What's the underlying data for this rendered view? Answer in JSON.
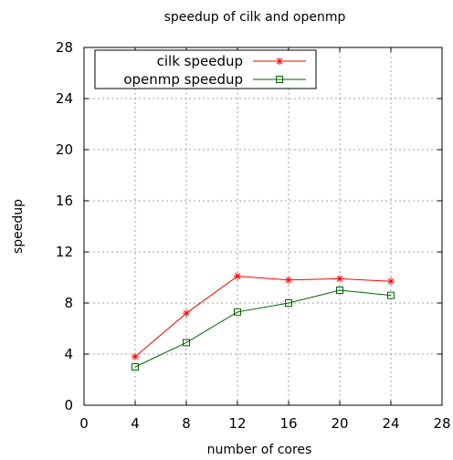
{
  "chart_data": {
    "type": "line",
    "title": "speedup of cilk and openmp",
    "xlabel": "number of cores",
    "ylabel": "speedup",
    "xlim": [
      0,
      28
    ],
    "ylim": [
      0,
      28
    ],
    "x_ticks": [
      0,
      4,
      8,
      12,
      16,
      20,
      24,
      28
    ],
    "y_ticks": [
      0,
      4,
      8,
      12,
      16,
      20,
      24,
      28
    ],
    "grid": true,
    "legend_position": "top-left",
    "series": [
      {
        "name": "cilk speedup",
        "color": "#ff0000",
        "marker": "asterisk",
        "x": [
          4,
          8,
          12,
          16,
          20,
          24
        ],
        "y": [
          3.8,
          7.2,
          10.1,
          9.8,
          9.9,
          9.7
        ]
      },
      {
        "name": "openmp speedup",
        "color": "#006400",
        "marker": "open-square",
        "x": [
          4,
          8,
          12,
          16,
          20,
          24
        ],
        "y": [
          3.0,
          4.9,
          7.3,
          8.0,
          9.0,
          8.6
        ]
      }
    ]
  }
}
